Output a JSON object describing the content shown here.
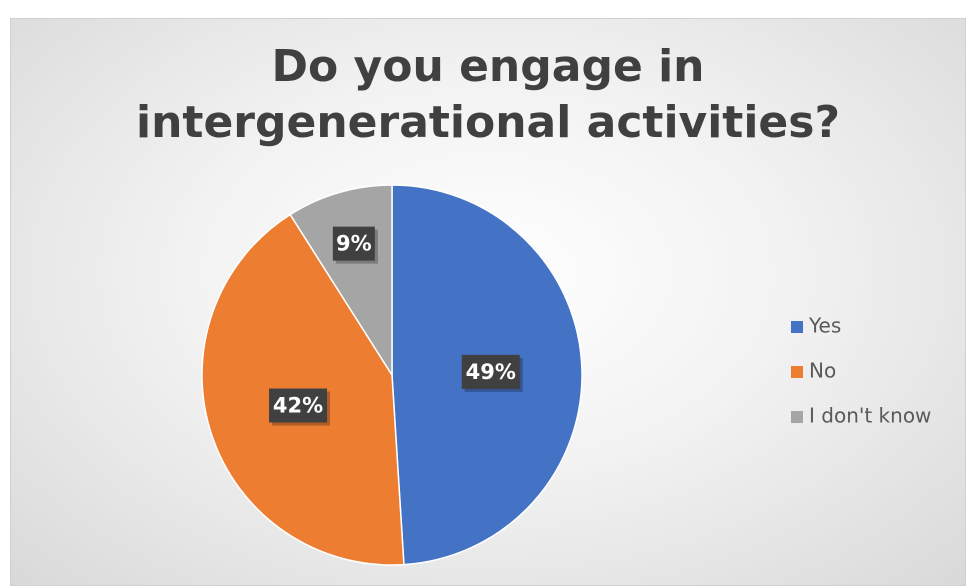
{
  "chart_data": {
    "type": "pie",
    "title": "Do you engage in intergenerational activities?",
    "categories": [
      "Yes",
      "No",
      "I don't know"
    ],
    "values": [
      49,
      42,
      9
    ],
    "value_labels": [
      "49%",
      "42%",
      "9%"
    ],
    "colors": [
      "#4472c4",
      "#ed7d31",
      "#a5a5a5"
    ],
    "legend": "right"
  }
}
